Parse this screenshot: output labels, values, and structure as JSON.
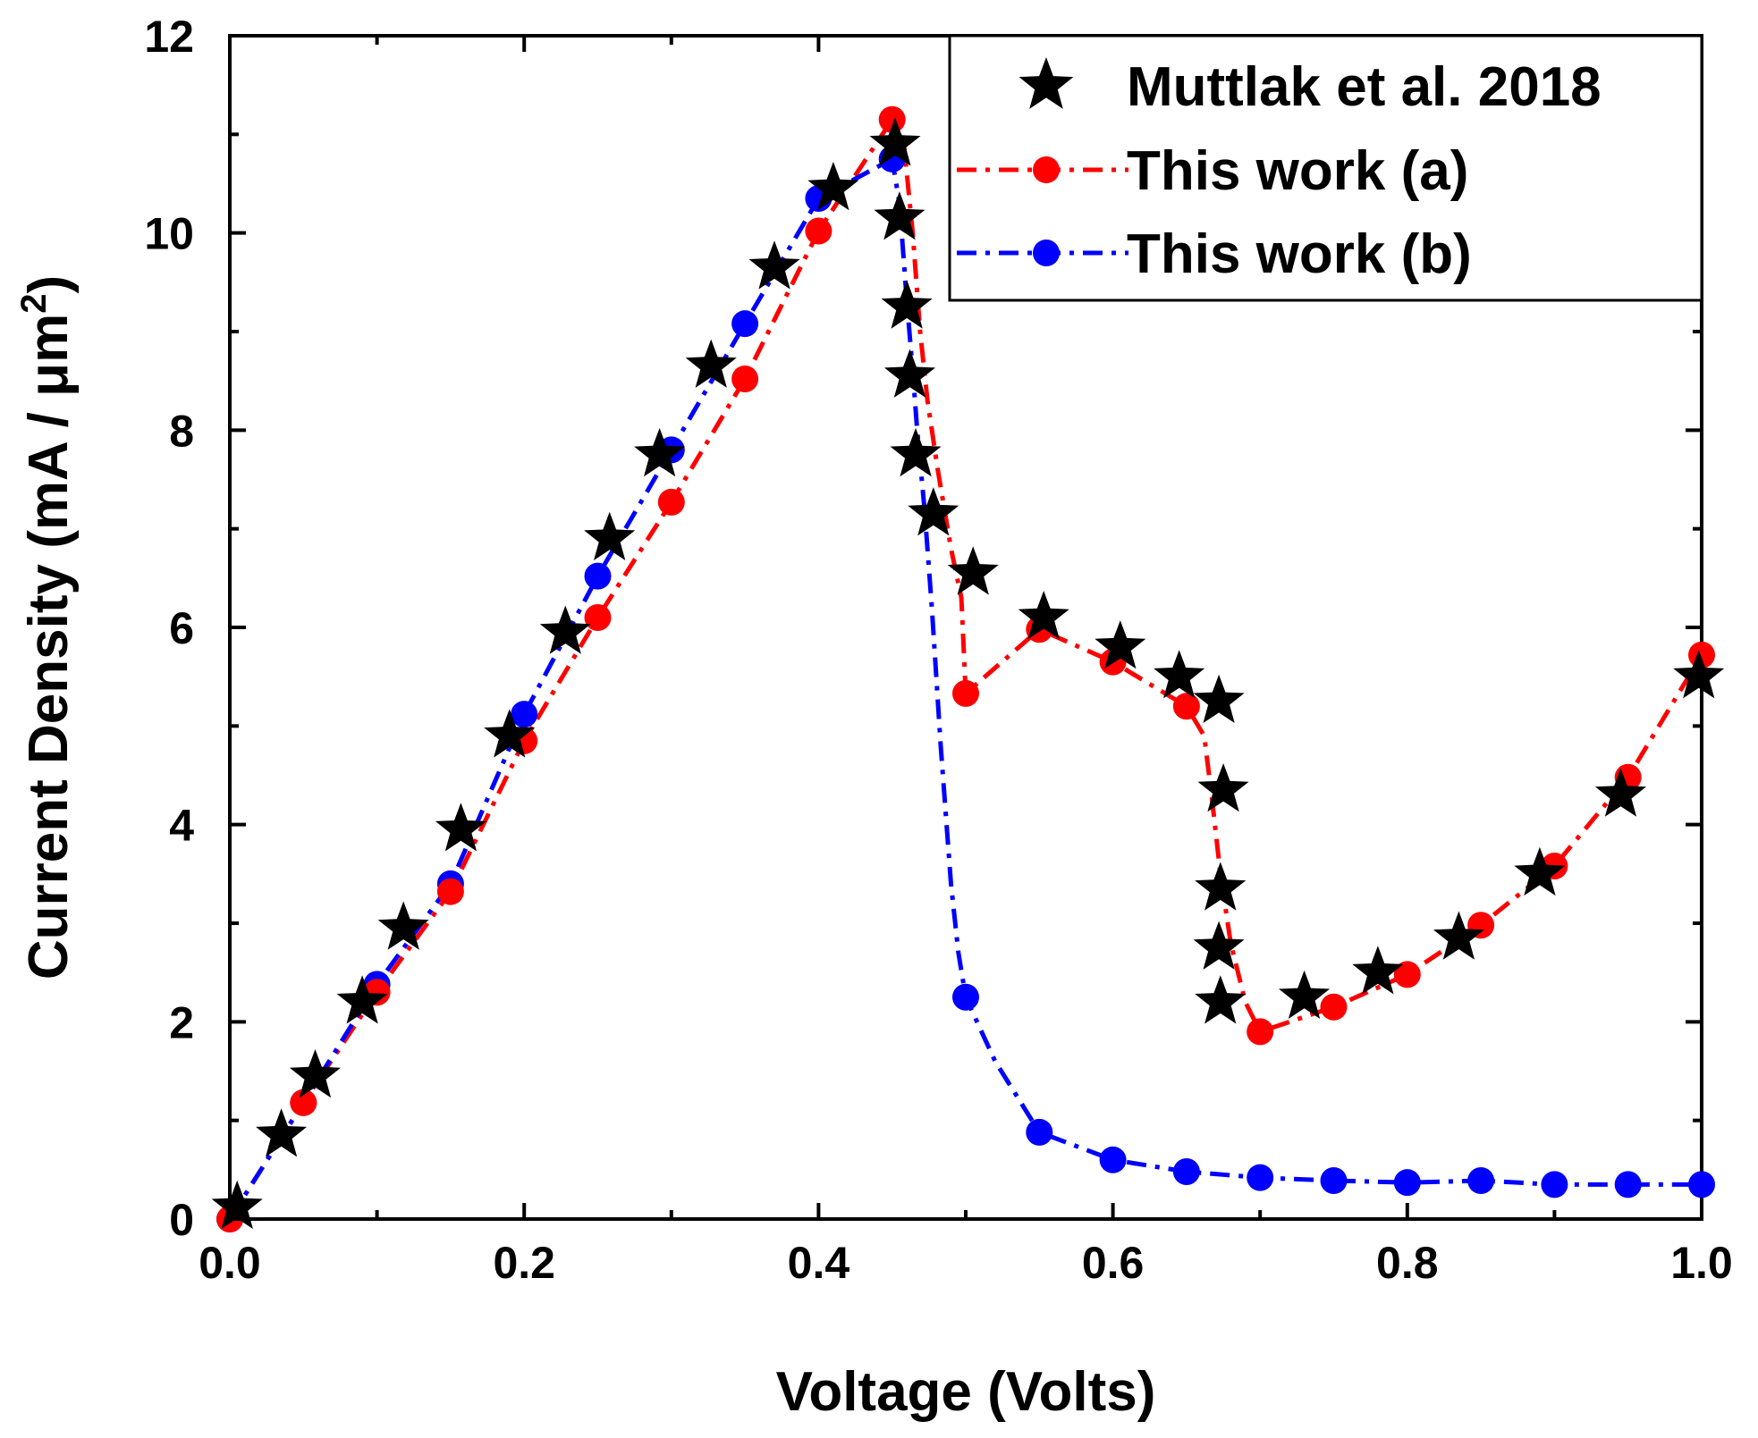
{
  "chart_data": {
    "type": "scatter",
    "title": "",
    "xlabel": "Voltage (Volts)",
    "ylabel": {
      "prefix": "Current Density (mA / μm",
      "superscript": "2",
      "suffix": ")"
    },
    "xlim": [
      0.0,
      1.0
    ],
    "ylim": [
      0,
      12
    ],
    "x_ticks": [
      "0.0",
      "0.2",
      "0.4",
      "0.6",
      "0.8",
      "1.0"
    ],
    "x_tick_values": [
      0.0,
      0.2,
      0.4,
      0.6,
      0.8,
      1.0
    ],
    "y_ticks": [
      "0",
      "2",
      "4",
      "6",
      "8",
      "10",
      "12"
    ],
    "y_tick_values": [
      0,
      2,
      4,
      6,
      8,
      10,
      12
    ],
    "legend_position": "top-right",
    "series": [
      {
        "name": "Muttlak et al. 2018",
        "marker": "star",
        "line": "none",
        "color": "#000000",
        "points": [
          [
            0.005,
            0.12
          ],
          [
            0.035,
            0.85
          ],
          [
            0.058,
            1.45
          ],
          [
            0.09,
            2.2
          ],
          [
            0.118,
            2.95
          ],
          [
            0.157,
            3.95
          ],
          [
            0.19,
            4.9
          ],
          [
            0.228,
            5.95
          ],
          [
            0.258,
            6.9
          ],
          [
            0.292,
            7.75
          ],
          [
            0.327,
            8.65
          ],
          [
            0.37,
            9.65
          ],
          [
            0.41,
            10.45
          ],
          [
            0.452,
            10.9
          ],
          [
            0.455,
            10.15
          ],
          [
            0.46,
            9.25
          ],
          [
            0.462,
            8.55
          ],
          [
            0.466,
            7.75
          ],
          [
            0.478,
            7.15
          ],
          [
            0.505,
            6.55
          ],
          [
            0.553,
            6.1
          ],
          [
            0.605,
            5.8
          ],
          [
            0.645,
            5.5
          ],
          [
            0.672,
            5.25
          ],
          [
            0.675,
            4.35
          ],
          [
            0.673,
            3.35
          ],
          [
            0.672,
            2.75
          ],
          [
            0.673,
            2.2
          ],
          [
            0.73,
            2.25
          ],
          [
            0.78,
            2.5
          ],
          [
            0.835,
            2.85
          ],
          [
            0.89,
            3.5
          ],
          [
            0.945,
            4.3
          ],
          [
            0.998,
            5.5
          ]
        ]
      },
      {
        "name": "This work (a)",
        "marker": "circle",
        "line": "dash-dot",
        "color": "#ff0000",
        "markers": [
          [
            0.0,
            0.0
          ],
          [
            0.05,
            1.18
          ],
          [
            0.1,
            2.3
          ],
          [
            0.15,
            3.32
          ],
          [
            0.2,
            4.85
          ],
          [
            0.25,
            6.1
          ],
          [
            0.3,
            7.27
          ],
          [
            0.35,
            8.52
          ],
          [
            0.4,
            10.02
          ],
          [
            0.45,
            11.15
          ],
          [
            0.5,
            5.33
          ],
          [
            0.55,
            5.98
          ],
          [
            0.6,
            5.65
          ],
          [
            0.65,
            5.2
          ],
          [
            0.7,
            1.9
          ],
          [
            0.75,
            2.15
          ],
          [
            0.8,
            2.48
          ],
          [
            0.85,
            2.98
          ],
          [
            0.9,
            3.58
          ],
          [
            0.95,
            4.48
          ],
          [
            1.0,
            5.72
          ]
        ],
        "curve": [
          [
            0.0,
            0.0
          ],
          [
            0.05,
            1.18
          ],
          [
            0.1,
            2.3
          ],
          [
            0.15,
            3.32
          ],
          [
            0.2,
            4.85
          ],
          [
            0.25,
            6.1
          ],
          [
            0.3,
            7.27
          ],
          [
            0.35,
            8.52
          ],
          [
            0.4,
            10.02
          ],
          [
            0.45,
            11.15
          ],
          [
            0.458,
            10.9
          ],
          [
            0.464,
            10.0
          ],
          [
            0.469,
            9.0
          ],
          [
            0.474,
            8.3
          ],
          [
            0.481,
            7.6
          ],
          [
            0.49,
            6.8
          ],
          [
            0.497,
            6.3
          ],
          [
            0.5,
            5.33
          ],
          [
            0.55,
            5.98
          ],
          [
            0.6,
            5.65
          ],
          [
            0.65,
            5.2
          ],
          [
            0.662,
            4.9
          ],
          [
            0.667,
            4.3
          ],
          [
            0.673,
            3.5
          ],
          [
            0.68,
            2.8
          ],
          [
            0.69,
            2.2
          ],
          [
            0.7,
            1.9
          ],
          [
            0.75,
            2.15
          ],
          [
            0.8,
            2.48
          ],
          [
            0.85,
            2.98
          ],
          [
            0.9,
            3.58
          ],
          [
            0.95,
            4.48
          ],
          [
            1.0,
            5.72
          ]
        ]
      },
      {
        "name": "This work (b)",
        "marker": "circle",
        "line": "dash-dot",
        "color": "#0000ff",
        "markers": [
          [
            0.0,
            0.0
          ],
          [
            0.05,
            1.18
          ],
          [
            0.1,
            2.38
          ],
          [
            0.15,
            3.4
          ],
          [
            0.2,
            5.12
          ],
          [
            0.25,
            6.52
          ],
          [
            0.3,
            7.8
          ],
          [
            0.35,
            9.08
          ],
          [
            0.4,
            10.35
          ],
          [
            0.45,
            10.75
          ],
          [
            0.5,
            2.25
          ],
          [
            0.55,
            0.88
          ],
          [
            0.6,
            0.6
          ],
          [
            0.65,
            0.48
          ],
          [
            0.7,
            0.42
          ],
          [
            0.75,
            0.39
          ],
          [
            0.8,
            0.37
          ],
          [
            0.85,
            0.39
          ],
          [
            0.9,
            0.35
          ],
          [
            0.95,
            0.35
          ],
          [
            1.0,
            0.35
          ]
        ],
        "curve": [
          [
            0.0,
            0.0
          ],
          [
            0.05,
            1.18
          ],
          [
            0.1,
            2.38
          ],
          [
            0.15,
            3.4
          ],
          [
            0.2,
            5.12
          ],
          [
            0.25,
            6.52
          ],
          [
            0.3,
            7.8
          ],
          [
            0.35,
            9.08
          ],
          [
            0.4,
            10.35
          ],
          [
            0.45,
            10.75
          ],
          [
            0.455,
            10.3
          ],
          [
            0.46,
            9.3
          ],
          [
            0.464,
            8.6
          ],
          [
            0.467,
            8.0
          ],
          [
            0.472,
            7.2
          ],
          [
            0.477,
            6.2
          ],
          [
            0.483,
            4.8
          ],
          [
            0.49,
            3.4
          ],
          [
            0.495,
            2.7
          ],
          [
            0.5,
            2.25
          ],
          [
            0.52,
            1.6
          ],
          [
            0.55,
            0.88
          ],
          [
            0.6,
            0.6
          ],
          [
            0.65,
            0.48
          ],
          [
            0.7,
            0.42
          ],
          [
            0.75,
            0.39
          ],
          [
            0.8,
            0.37
          ],
          [
            0.85,
            0.39
          ],
          [
            0.9,
            0.35
          ],
          [
            0.95,
            0.35
          ],
          [
            1.0,
            0.35
          ]
        ]
      }
    ]
  }
}
